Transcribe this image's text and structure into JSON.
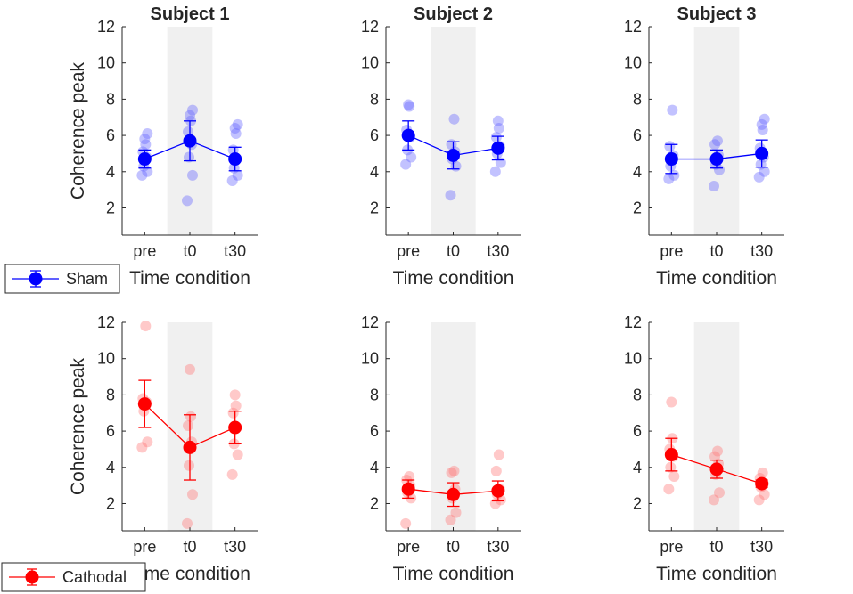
{
  "chart_data": {
    "type": "scatter",
    "figure_rows": [
      {
        "condition": "Sham",
        "color": "#0000ff",
        "jitter_color": "#6666ff",
        "ylabel": "Coherence peak",
        "xlabel": "Time condition",
        "legend_label": "Sham",
        "panels": [
          {
            "title": "Subject 1",
            "means": [
              4.7,
              5.7,
              4.7
            ],
            "err": [
              0.5,
              1.1,
              0.65
            ],
            "points": [
              [
                3.8,
                4.0,
                4.3,
                4.8,
                5.1,
                5.5,
                5.8,
                6.1
              ],
              [
                2.4,
                3.8,
                4.8,
                5.5,
                6.2,
                6.8,
                7.1,
                7.4
              ],
              [
                3.5,
                3.8,
                4.2,
                4.7,
                5.2,
                6.1,
                6.4,
                6.6
              ]
            ]
          },
          {
            "title": "Subject 2",
            "means": [
              6.0,
              4.9,
              5.3
            ],
            "err": [
              0.8,
              0.75,
              0.65
            ],
            "points": [
              [
                4.4,
                4.8,
                5.2,
                5.9,
                6.3,
                7.6,
                7.7
              ],
              [
                2.7,
                4.3,
                4.7,
                5.1,
                5.5,
                6.9
              ],
              [
                4.0,
                4.5,
                5.0,
                5.4,
                5.9,
                6.4,
                6.8
              ]
            ]
          },
          {
            "title": "Subject 3",
            "means": [
              4.7,
              4.7,
              5.0
            ],
            "err": [
              0.8,
              0.5,
              0.75
            ],
            "points": [
              [
                3.6,
                3.8,
                4.3,
                4.9,
                5.4,
                7.4
              ],
              [
                3.2,
                4.1,
                4.4,
                4.9,
                5.5,
                5.7
              ],
              [
                3.7,
                4.0,
                4.4,
                4.8,
                5.3,
                6.3,
                6.6,
                6.9
              ]
            ]
          }
        ]
      },
      {
        "condition": "Cathodal",
        "color": "#ff0000",
        "jitter_color": "#ff7777",
        "ylabel": "Coherence peak",
        "xlabel": "Time condition",
        "legend_label": "Cathodal",
        "panels": [
          {
            "title": "",
            "means": [
              7.5,
              5.1,
              6.2
            ],
            "err": [
              1.3,
              1.8,
              0.9
            ],
            "points": [
              [
                5.1,
                5.4,
                7.1,
                7.6,
                7.8,
                11.8
              ],
              [
                0.9,
                2.5,
                4.1,
                5.4,
                6.3,
                6.8,
                9.4
              ],
              [
                3.6,
                4.7,
                5.3,
                6.2,
                7.0,
                7.4,
                8.0
              ]
            ]
          },
          {
            "title": "",
            "means": [
              2.8,
              2.5,
              2.7
            ],
            "err": [
              0.5,
              0.65,
              0.55
            ],
            "points": [
              [
                0.9,
                2.3,
                2.6,
                3.0,
                3.3,
                3.5
              ],
              [
                1.1,
                1.5,
                2.3,
                2.8,
                3.7,
                3.8
              ],
              [
                2.0,
                2.2,
                2.5,
                2.8,
                3.8,
                4.7
              ]
            ]
          },
          {
            "title": "",
            "means": [
              4.7,
              3.9,
              3.1
            ],
            "err": [
              0.9,
              0.5,
              0.2
            ],
            "points": [
              [
                2.8,
                3.5,
                4.0,
                4.6,
                5.0,
                5.6,
                7.6
              ],
              [
                2.2,
                2.6,
                3.6,
                4.2,
                4.6,
                4.9
              ],
              [
                2.2,
                2.5,
                2.9,
                3.1,
                3.4,
                3.7
              ]
            ]
          }
        ]
      }
    ],
    "categories": [
      "pre",
      "t0",
      "t30"
    ],
    "yticks": [
      2,
      4,
      6,
      8,
      10,
      12
    ],
    "ylim": [
      0.5,
      12
    ],
    "xlim": [
      0.5,
      3.5
    ],
    "shaded_region": [
      1.5,
      2.5
    ],
    "shade_color": "#f0f0f0",
    "grid": false
  }
}
